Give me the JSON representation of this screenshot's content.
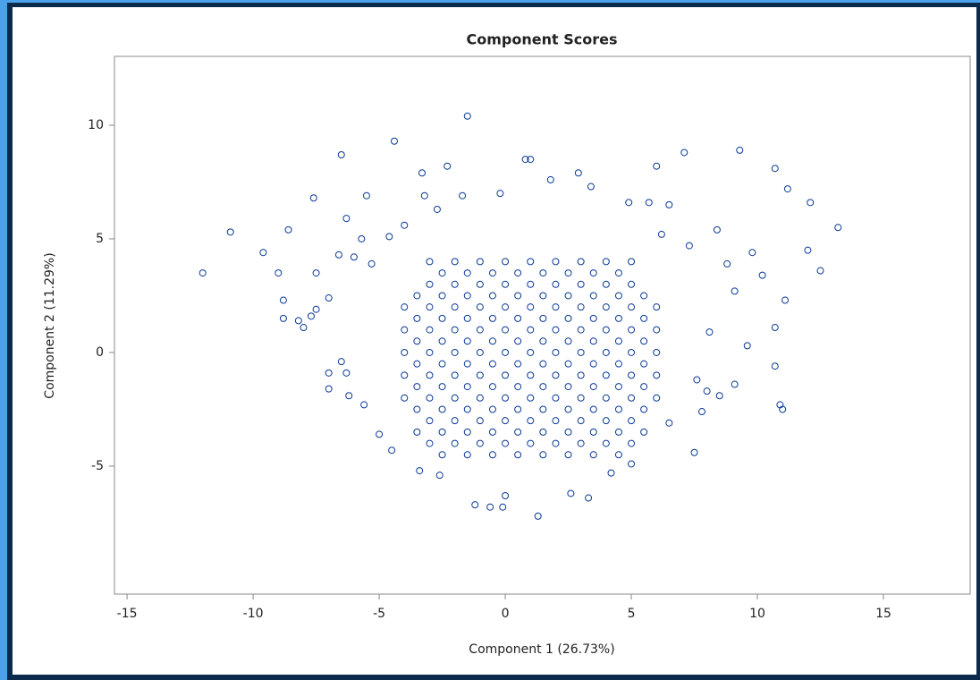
{
  "chart_data": {
    "type": "scatter",
    "title": "Component Scores",
    "xlabel": "Component 1 (26.73%)",
    "ylabel": "Component 2 (11.29%)",
    "color": "#0a3a96",
    "xlim": [
      -15.5,
      18.44
    ],
    "ylim": [
      -10.63,
      13.03
    ],
    "xticks": [
      -15,
      -10,
      -5,
      0,
      5,
      10,
      15
    ],
    "yticks": [
      -5,
      0,
      5,
      10
    ],
    "x": [
      -12,
      -10.9,
      -9.6,
      -8.6,
      -9,
      -8.8,
      -8.8,
      -8.2,
      -8,
      -7.6,
      -6.5,
      -4.4,
      -3.3,
      -2.3,
      -1.5,
      0.8,
      1,
      1.8,
      2.9,
      3.4,
      6,
      7.1,
      9.3,
      10.7,
      11.2,
      12.1,
      13.2,
      12.5,
      12,
      11.1,
      10.7,
      10.9,
      11,
      10.7,
      9.6,
      7.5,
      1.3,
      -0.6,
      -0.1,
      -1.2,
      3.3,
      0,
      -3.4,
      -4.5,
      -7,
      -7,
      -6.3,
      -6.5,
      -7.5,
      -7.7,
      -7,
      -7.5,
      -6.3,
      -5.5,
      -4,
      -6,
      -5.3,
      10.2,
      9.8,
      9.1,
      9.1,
      8.5,
      8.8,
      7.8,
      8,
      6.5,
      5.7,
      4.9,
      -1.7,
      -0.2,
      -2.7,
      -3.2,
      -4.6,
      -5.7,
      -6.6,
      8.4,
      7.3,
      6.2,
      8.1,
      7.6,
      6.5,
      5,
      4.2,
      2.6,
      -2.6,
      -5.6,
      -6.2,
      -5,
      -3,
      -2,
      -1,
      0,
      1,
      2,
      3,
      4,
      5,
      -3,
      -2,
      -1,
      0,
      1,
      2,
      3,
      4,
      5,
      -4,
      -3,
      -2,
      -1,
      0,
      1,
      2,
      3,
      4,
      5,
      6,
      -4,
      -3,
      -2,
      -1,
      0,
      1,
      2,
      3,
      4,
      5,
      6,
      -4,
      -3,
      -2,
      -1,
      0,
      1,
      2,
      3,
      4,
      5,
      6,
      -4,
      -3,
      -2,
      -1,
      0,
      1,
      2,
      3,
      4,
      5,
      6,
      -4,
      -3,
      -2,
      -1,
      0,
      1,
      2,
      3,
      4,
      5,
      6,
      -3,
      -2,
      -1,
      0,
      1,
      2,
      3,
      4,
      5,
      -3,
      -2,
      -1,
      0,
      1,
      2,
      3,
      4,
      5,
      -2.5,
      -1.5,
      -0.5,
      0.5,
      1.5,
      2.5,
      3.5,
      4.5,
      -3.5,
      -2.5,
      -1.5,
      -0.5,
      0.5,
      1.5,
      2.5,
      3.5,
      4.5,
      5.5,
      -3.5,
      -2.5,
      -1.5,
      -0.5,
      0.5,
      1.5,
      2.5,
      3.5,
      4.5,
      5.5,
      -3.5,
      -2.5,
      -1.5,
      -0.5,
      0.5,
      1.5,
      2.5,
      3.5,
      4.5,
      5.5,
      -3.5,
      -2.5,
      -1.5,
      -0.5,
      0.5,
      1.5,
      2.5,
      3.5,
      4.5,
      5.5,
      -3.5,
      -2.5,
      -1.5,
      -0.5,
      0.5,
      1.5,
      2.5,
      3.5,
      4.5,
      5.5,
      -3.5,
      -2.5,
      -1.5,
      -0.5,
      0.5,
      1.5,
      2.5,
      3.5,
      4.5,
      5.5,
      -3.5,
      -2.5,
      -1.5,
      -0.5,
      0.5,
      1.5,
      2.5,
      3.5,
      4.5,
      5.5,
      -2.5,
      -1.5,
      -0.5,
      0.5,
      1.5,
      2.5,
      3.5,
      4.5
    ],
    "y": [
      3.5,
      5.3,
      4.4,
      5.4,
      3.5,
      2.3,
      1.5,
      1.4,
      1.1,
      6.8,
      8.7,
      9.3,
      7.9,
      8.2,
      10.4,
      8.5,
      8.5,
      7.6,
      7.9,
      7.3,
      8.2,
      8.8,
      8.9,
      8.1,
      7.2,
      6.6,
      5.5,
      3.6,
      4.5,
      2.3,
      1.1,
      -2.3,
      -2.5,
      -0.6,
      0.3,
      -4.4,
      -7.2,
      -6.8,
      -6.8,
      -6.7,
      -6.4,
      -6.3,
      -5.2,
      -4.3,
      -1.6,
      -0.9,
      -0.9,
      -0.4,
      1.9,
      1.6,
      2.4,
      3.5,
      5.9,
      6.9,
      5.6,
      4.2,
      3.9,
      3.4,
      4.4,
      2.7,
      -1.4,
      -1.9,
      3.9,
      -2.6,
      -1.7,
      6.5,
      6.6,
      6.6,
      6.9,
      7.0,
      6.3,
      6.9,
      5.1,
      5,
      4.3,
      5.4,
      4.7,
      5.2,
      0.9,
      -1.2,
      -3.1,
      -4.9,
      -5.3,
      -6.2,
      -5.4,
      -2.3,
      -1.9,
      -3.6,
      -4,
      -4,
      -4,
      -4,
      -4,
      -4,
      -4,
      -4,
      -4,
      -3,
      -3,
      -3,
      -3,
      -3,
      -3,
      -3,
      -3,
      -3,
      -2,
      -2,
      -2,
      -2,
      -2,
      -2,
      -2,
      -2,
      -2,
      -2,
      -2,
      -1,
      -1,
      -1,
      -1,
      -1,
      -1,
      -1,
      -1,
      -1,
      -1,
      -1,
      0,
      0,
      0,
      0,
      0,
      0,
      0,
      0,
      0,
      0,
      0,
      1,
      1,
      1,
      1,
      1,
      1,
      1,
      1,
      1,
      1,
      1,
      2,
      2,
      2,
      2,
      2,
      2,
      2,
      2,
      2,
      2,
      2,
      3,
      3,
      3,
      3,
      3,
      3,
      3,
      3,
      3,
      4,
      4,
      4,
      4,
      4,
      4,
      4,
      4,
      4,
      -4.5,
      -4.5,
      -4.5,
      -4.5,
      -4.5,
      -4.5,
      -4.5,
      -4.5,
      -3.5,
      -3.5,
      -3.5,
      -3.5,
      -3.5,
      -3.5,
      -3.5,
      -3.5,
      -3.5,
      -3.5,
      -2.5,
      -2.5,
      -2.5,
      -2.5,
      -2.5,
      -2.5,
      -2.5,
      -2.5,
      -2.5,
      -2.5,
      -1.5,
      -1.5,
      -1.5,
      -1.5,
      -1.5,
      -1.5,
      -1.5,
      -1.5,
      -1.5,
      -1.5,
      -0.5,
      -0.5,
      -0.5,
      -0.5,
      -0.5,
      -0.5,
      -0.5,
      -0.5,
      -0.5,
      -0.5,
      0.5,
      0.5,
      0.5,
      0.5,
      0.5,
      0.5,
      0.5,
      0.5,
      0.5,
      0.5,
      1.5,
      1.5,
      1.5,
      1.5,
      1.5,
      1.5,
      1.5,
      1.5,
      1.5,
      1.5,
      2.5,
      2.5,
      2.5,
      2.5,
      2.5,
      2.5,
      2.5,
      2.5,
      2.5,
      2.5,
      3.5,
      3.5,
      3.5,
      3.5,
      3.5,
      3.5,
      3.5,
      3.5
    ]
  }
}
